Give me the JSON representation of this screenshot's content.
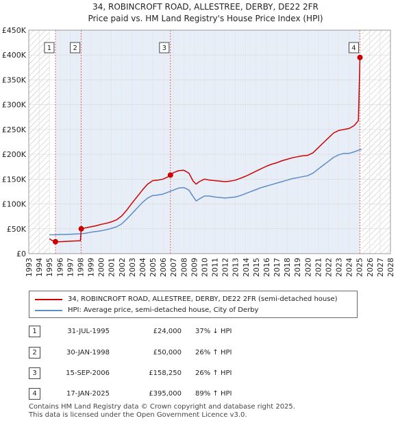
{
  "title_line1": "34, ROBINCROFT ROAD, ALLESTREE, DERBY, DE22 2FR",
  "title_line2": "Price paid vs. HM Land Registry's House Price Index (HPI)",
  "colors": {
    "price_paid": "#cc0000",
    "hpi": "#5b8cc8",
    "highlight": "#e8eef8",
    "hatch": "#bbbbbb"
  },
  "chart_data": {
    "type": "line",
    "xlim": [
      1993,
      2028
    ],
    "ylim": [
      0,
      450000
    ],
    "x_ticks": [
      1993,
      1994,
      1995,
      1996,
      1997,
      1998,
      1999,
      2000,
      2001,
      2002,
      2003,
      2004,
      2005,
      2006,
      2007,
      2008,
      2009,
      2010,
      2011,
      2012,
      2013,
      2014,
      2015,
      2016,
      2017,
      2018,
      2019,
      2020,
      2021,
      2022,
      2023,
      2024,
      2025,
      2026,
      2027,
      2028
    ],
    "y_ticks": [
      {
        "value": 0,
        "label": "£0"
      },
      {
        "value": 50000,
        "label": "£50K"
      },
      {
        "value": 100000,
        "label": "£100K"
      },
      {
        "value": 150000,
        "label": "£150K"
      },
      {
        "value": 200000,
        "label": "£200K"
      },
      {
        "value": 250000,
        "label": "£250K"
      },
      {
        "value": 300000,
        "label": "£300K"
      },
      {
        "value": 350000,
        "label": "£350K"
      },
      {
        "value": 400000,
        "label": "£400K"
      },
      {
        "value": 450000,
        "label": "£450K"
      }
    ],
    "hatched_before": 1995.0,
    "hatched_after": 2025.2,
    "highlight_range": [
      1995.58,
      2025.05
    ],
    "series": [
      {
        "name": "34, ROBINCROFT ROAD, ALLESTREE, DERBY, DE22 2FR (semi-detached house)",
        "color": "#cc0000",
        "points": [
          [
            1995.0,
            30000
          ],
          [
            1995.2,
            27000
          ],
          [
            1995.58,
            24000
          ],
          [
            1996.0,
            24000
          ],
          [
            1996.5,
            24500
          ],
          [
            1997.0,
            25000
          ],
          [
            1997.5,
            25500
          ],
          [
            1998.0,
            26000
          ],
          [
            1998.08,
            50000
          ],
          [
            1998.5,
            52000
          ],
          [
            1999.0,
            54000
          ],
          [
            1999.5,
            56000
          ],
          [
            2000.0,
            59000
          ],
          [
            2000.5,
            61000
          ],
          [
            2001.0,
            64000
          ],
          [
            2001.5,
            68000
          ],
          [
            2002.0,
            76000
          ],
          [
            2002.5,
            88000
          ],
          [
            2003.0,
            102000
          ],
          [
            2003.5,
            115000
          ],
          [
            2004.0,
            128000
          ],
          [
            2004.5,
            140000
          ],
          [
            2005.0,
            147000
          ],
          [
            2005.5,
            148000
          ],
          [
            2006.0,
            150000
          ],
          [
            2006.5,
            155000
          ],
          [
            2006.71,
            158250
          ],
          [
            2007.0,
            163000
          ],
          [
            2007.5,
            167000
          ],
          [
            2008.0,
            168000
          ],
          [
            2008.5,
            162000
          ],
          [
            2008.9,
            146000
          ],
          [
            2009.2,
            140000
          ],
          [
            2009.5,
            145000
          ],
          [
            2010.0,
            150000
          ],
          [
            2010.5,
            148000
          ],
          [
            2011.0,
            147000
          ],
          [
            2011.5,
            146000
          ],
          [
            2012.0,
            145000
          ],
          [
            2012.5,
            146000
          ],
          [
            2013.0,
            148000
          ],
          [
            2013.5,
            152000
          ],
          [
            2014.0,
            156000
          ],
          [
            2014.5,
            161000
          ],
          [
            2015.0,
            166000
          ],
          [
            2015.5,
            171000
          ],
          [
            2016.0,
            176000
          ],
          [
            2016.5,
            180000
          ],
          [
            2017.0,
            183000
          ],
          [
            2017.5,
            187000
          ],
          [
            2018.0,
            190000
          ],
          [
            2018.5,
            193000
          ],
          [
            2019.0,
            195000
          ],
          [
            2019.5,
            197000
          ],
          [
            2020.0,
            198000
          ],
          [
            2020.5,
            203000
          ],
          [
            2021.0,
            213000
          ],
          [
            2021.5,
            223000
          ],
          [
            2022.0,
            233000
          ],
          [
            2022.5,
            243000
          ],
          [
            2023.0,
            248000
          ],
          [
            2023.5,
            250000
          ],
          [
            2024.0,
            252000
          ],
          [
            2024.5,
            258000
          ],
          [
            2024.9,
            268000
          ],
          [
            2025.05,
            395000
          ],
          [
            2025.2,
            392000
          ]
        ]
      },
      {
        "name": "HPI: Average price, semi-detached house, City of Derby",
        "color": "#5b8cc8",
        "points": [
          [
            1995.0,
            38000
          ],
          [
            1995.5,
            38000
          ],
          [
            1996.0,
            38500
          ],
          [
            1996.5,
            38500
          ],
          [
            1997.0,
            39000
          ],
          [
            1997.5,
            39500
          ],
          [
            1998.0,
            40000
          ],
          [
            1998.5,
            41000
          ],
          [
            1999.0,
            43000
          ],
          [
            1999.5,
            44500
          ],
          [
            2000.0,
            46000
          ],
          [
            2000.5,
            48000
          ],
          [
            2001.0,
            51000
          ],
          [
            2001.5,
            54000
          ],
          [
            2002.0,
            60000
          ],
          [
            2002.5,
            70000
          ],
          [
            2003.0,
            81000
          ],
          [
            2003.5,
            92000
          ],
          [
            2004.0,
            103000
          ],
          [
            2004.5,
            112000
          ],
          [
            2005.0,
            117000
          ],
          [
            2005.5,
            118000
          ],
          [
            2006.0,
            120000
          ],
          [
            2006.5,
            124000
          ],
          [
            2007.0,
            128000
          ],
          [
            2007.5,
            132000
          ],
          [
            2008.0,
            133000
          ],
          [
            2008.5,
            128000
          ],
          [
            2008.9,
            115000
          ],
          [
            2009.2,
            106000
          ],
          [
            2009.5,
            110000
          ],
          [
            2010.0,
            116000
          ],
          [
            2010.5,
            116000
          ],
          [
            2011.0,
            114000
          ],
          [
            2011.5,
            113000
          ],
          [
            2012.0,
            112000
          ],
          [
            2012.5,
            113000
          ],
          [
            2013.0,
            114000
          ],
          [
            2013.5,
            117000
          ],
          [
            2014.0,
            121000
          ],
          [
            2014.5,
            125000
          ],
          [
            2015.0,
            129000
          ],
          [
            2015.5,
            133000
          ],
          [
            2016.0,
            136000
          ],
          [
            2016.5,
            139000
          ],
          [
            2017.0,
            142000
          ],
          [
            2017.5,
            145000
          ],
          [
            2018.0,
            148000
          ],
          [
            2018.5,
            151000
          ],
          [
            2019.0,
            153000
          ],
          [
            2019.5,
            155000
          ],
          [
            2020.0,
            157000
          ],
          [
            2020.5,
            162000
          ],
          [
            2021.0,
            170000
          ],
          [
            2021.5,
            178000
          ],
          [
            2022.0,
            186000
          ],
          [
            2022.5,
            194000
          ],
          [
            2023.0,
            199000
          ],
          [
            2023.5,
            202000
          ],
          [
            2024.0,
            202000
          ],
          [
            2024.5,
            205000
          ],
          [
            2025.0,
            209000
          ],
          [
            2025.2,
            210000
          ]
        ]
      }
    ],
    "markers": [
      {
        "label": "1",
        "x": 1995.58,
        "y": 24000
      },
      {
        "label": "2",
        "x": 1998.08,
        "y": 50000
      },
      {
        "label": "3",
        "x": 2006.71,
        "y": 158250
      },
      {
        "label": "4",
        "x": 2025.05,
        "y": 395000
      }
    ]
  },
  "legend": [
    {
      "label": "34, ROBINCROFT ROAD, ALLESTREE, DERBY, DE22 2FR (semi-detached house)",
      "color": "#cc0000"
    },
    {
      "label": "HPI: Average price, semi-detached house, City of Derby",
      "color": "#5b8cc8"
    }
  ],
  "sales": [
    {
      "num": "1",
      "date": "31-JUL-1995",
      "price": "£24,000",
      "hpi": "37% ↓ HPI"
    },
    {
      "num": "2",
      "date": "30-JAN-1998",
      "price": "£50,000",
      "hpi": "26% ↑ HPI"
    },
    {
      "num": "3",
      "date": "15-SEP-2006",
      "price": "£158,250",
      "hpi": "26% ↑ HPI"
    },
    {
      "num": "4",
      "date": "17-JAN-2025",
      "price": "£395,000",
      "hpi": "89% ↑ HPI"
    }
  ],
  "footer_line1": "Contains HM Land Registry data © Crown copyright and database right 2025.",
  "footer_line2": "This data is licensed under the Open Government Licence v3.0."
}
